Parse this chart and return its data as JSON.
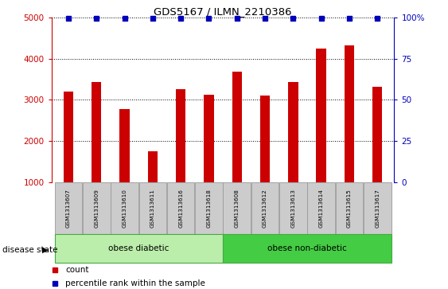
{
  "title": "GDS5167 / ILMN_2210386",
  "samples": [
    "GSM1313607",
    "GSM1313609",
    "GSM1313610",
    "GSM1313611",
    "GSM1313616",
    "GSM1313618",
    "GSM1313608",
    "GSM1313612",
    "GSM1313613",
    "GSM1313614",
    "GSM1313615",
    "GSM1313617"
  ],
  "counts": [
    3200,
    3430,
    2780,
    1750,
    3250,
    3120,
    3680,
    3100,
    3430,
    4250,
    4320,
    3310
  ],
  "bar_color": "#cc0000",
  "percentile_color": "#0000bb",
  "ylim_left": [
    1000,
    5000
  ],
  "ylim_right": [
    0,
    100
  ],
  "yticks_left": [
    1000,
    2000,
    3000,
    4000,
    5000
  ],
  "yticks_right": [
    0,
    25,
    50,
    75,
    100
  ],
  "ytick_labels_right": [
    "0",
    "25",
    "50",
    "75",
    "100%"
  ],
  "groups": [
    {
      "label": "obese diabetic",
      "start": 0,
      "end": 6,
      "color": "#bbeeaa",
      "edgecolor": "#44aa44"
    },
    {
      "label": "obese non-diabetic",
      "start": 6,
      "end": 12,
      "color": "#44cc44",
      "edgecolor": "#44aa44"
    }
  ],
  "disease_state_label": "disease state",
  "legend_count_label": "count",
  "legend_percentile_label": "percentile rank within the sample",
  "bar_width": 0.35,
  "sample_label_color": "#cccccc",
  "sample_label_edge": "#999999"
}
